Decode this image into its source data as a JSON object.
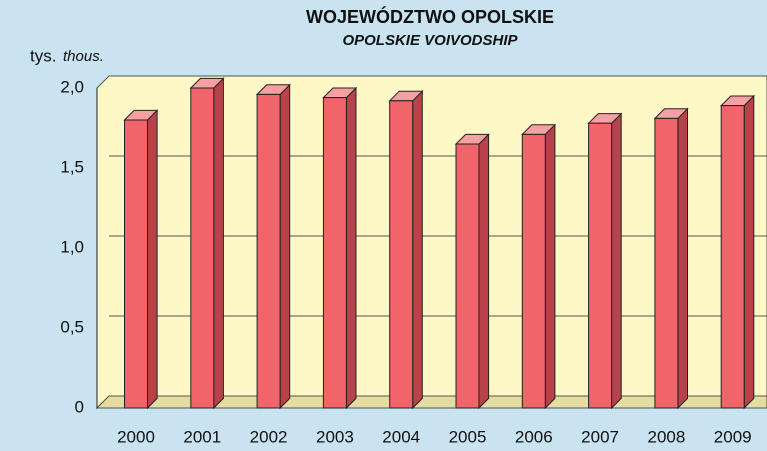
{
  "chart_data": {
    "type": "bar3d",
    "title": "WOJEWÓDZTWO OPOLSKIE",
    "subtitle": "OPOLSKIE VOIVODSHIP",
    "y_label": "tys.",
    "y_label_en": "thous.",
    "categories": [
      "2000",
      "2001",
      "2002",
      "2003",
      "2004",
      "2005",
      "2006",
      "2007",
      "2008",
      "2009"
    ],
    "values": [
      1.8,
      2.0,
      1.96,
      1.94,
      1.92,
      1.65,
      1.71,
      1.78,
      1.81,
      1.89
    ],
    "color": "#f0646a",
    "ylim": [
      0,
      2
    ],
    "yticks": [
      0,
      {
        "value": 0.5,
        "label": "0,5"
      },
      {
        "value": 1,
        "label": "1,0"
      },
      {
        "value": 1.5,
        "label": "1,5"
      },
      {
        "value": 2,
        "label": "2,0"
      }
    ],
    "grid": true
  }
}
